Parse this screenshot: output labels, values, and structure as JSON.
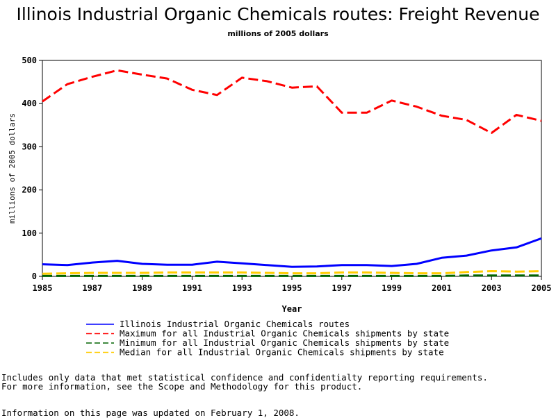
{
  "header": {
    "title": "Illinois Industrial Organic Chemicals routes: Freight Revenue",
    "subtitle": "millions of 2005 dollars"
  },
  "chart_data": {
    "type": "line",
    "xlabel": "Year",
    "ylabel": "millions of 2005 dollars",
    "xlim": [
      1985,
      2005
    ],
    "ylim": [
      0,
      500
    ],
    "xticks": [
      1985,
      1987,
      1989,
      1991,
      1993,
      1995,
      1997,
      1999,
      2001,
      2003,
      2005
    ],
    "yticks": [
      0,
      100,
      200,
      300,
      400,
      500
    ],
    "x": [
      1985,
      1986,
      1987,
      1988,
      1989,
      1990,
      1991,
      1992,
      1993,
      1994,
      1995,
      1996,
      1997,
      1998,
      1999,
      2000,
      2001,
      2002,
      2003,
      2004,
      2005
    ],
    "series": [
      {
        "name": "Illinois Industrial Organic Chemicals routes",
        "color": "#0000ff",
        "style": "solid",
        "values": [
          28,
          26,
          32,
          36,
          29,
          27,
          27,
          34,
          30,
          26,
          22,
          23,
          26,
          26,
          24,
          29,
          43,
          48,
          60,
          67,
          88
        ]
      },
      {
        "name": "Maximum for all Industrial Organic Chemicals shipments by state",
        "color": "#ff0000",
        "style": "dashed",
        "values": [
          405,
          445,
          462,
          477,
          467,
          458,
          432,
          420,
          460,
          452,
          437,
          440,
          379,
          379,
          407,
          393,
          372,
          362,
          332,
          374,
          360
        ]
      },
      {
        "name": "Minimum for all Industrial Organic Chemicals shipments by state",
        "color": "#006400",
        "style": "dashed",
        "values": [
          1,
          1,
          1,
          1,
          1,
          1,
          1,
          1,
          1,
          1,
          1,
          1,
          1,
          1,
          1,
          1,
          1,
          2,
          2,
          2,
          2
        ]
      },
      {
        "name": "Median for all Industrial Organic Chemicals shipments by state",
        "color": "#ffcc00",
        "style": "dashed",
        "values": [
          6,
          7,
          8,
          8,
          8,
          9,
          9,
          9,
          9,
          8,
          7,
          7,
          9,
          9,
          8,
          7,
          7,
          10,
          12,
          11,
          12
        ]
      }
    ]
  },
  "footer": {
    "note_line1": "Includes only data that met statistical confidence and confidentialty reporting requirements.",
    "note_line2": "For more information, see the Scope and Methodology for this product.",
    "updated": "Information on this page was updated on February 1, 2008."
  }
}
